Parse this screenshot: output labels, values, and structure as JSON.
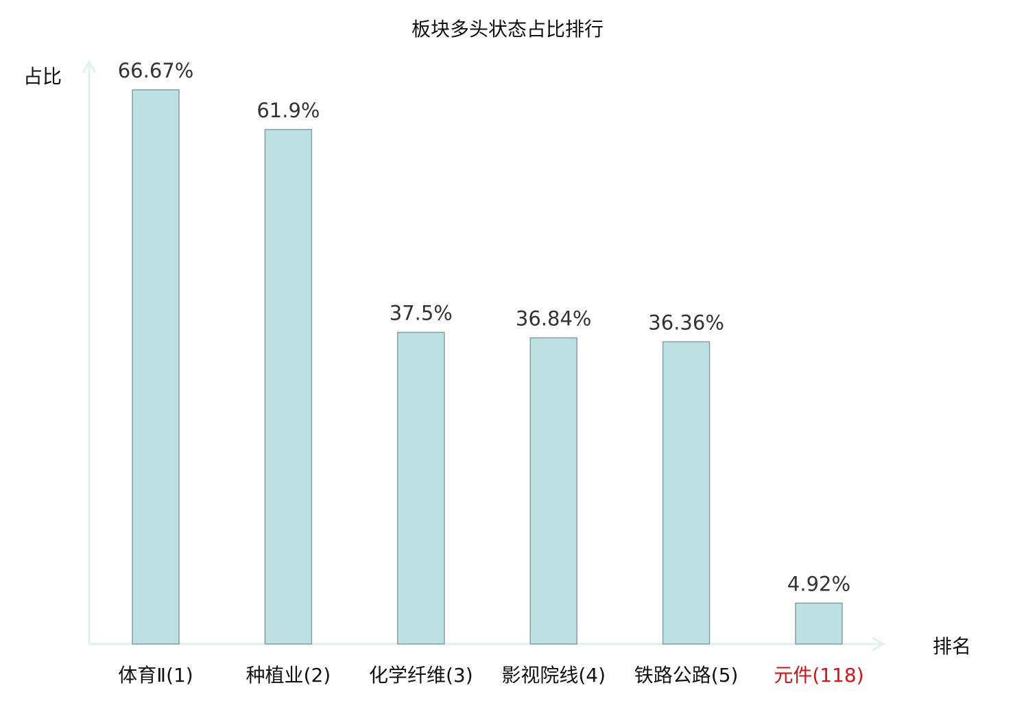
{
  "chart_data": {
    "type": "bar",
    "title": "板块多头状态占比排行",
    "ylabel": "占比",
    "xlabel": "排名",
    "categories": [
      {
        "name": "体育Ⅱ",
        "rank": "(1)",
        "highlight": false
      },
      {
        "name": "种植业",
        "rank": "(2)",
        "highlight": false
      },
      {
        "name": "化学纤维",
        "rank": "(3)",
        "highlight": false
      },
      {
        "name": "影视院线",
        "rank": "(4)",
        "highlight": false
      },
      {
        "name": "铁路公路",
        "rank": "(5)",
        "highlight": false
      },
      {
        "name": "元件",
        "rank": "(118)",
        "highlight": true
      }
    ],
    "values": [
      66.67,
      61.9,
      37.5,
      36.84,
      36.36,
      4.92
    ],
    "value_labels": [
      "66.67%",
      "61.9%",
      "37.5%",
      "36.84%",
      "36.36%",
      "4.92%"
    ],
    "ylim": [
      0,
      66.67
    ],
    "grid": false,
    "colors": {
      "bar_fill": "#bde0e3",
      "bar_stroke": "#869fa3",
      "axis": "#def2ee",
      "text": "#333333",
      "category_text": "#111111",
      "highlight_text": "#dd1111"
    }
  }
}
